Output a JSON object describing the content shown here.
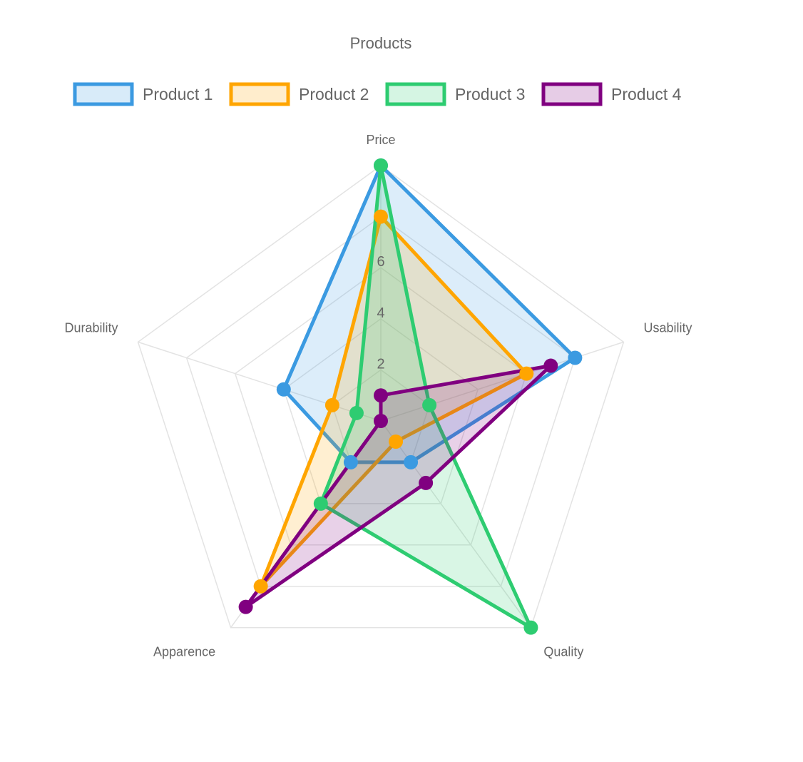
{
  "chart_data": {
    "type": "radar",
    "title": "Products",
    "axes": [
      "Price",
      "Usability",
      "Quality",
      "Apparence",
      "Durability"
    ],
    "range": [
      0,
      10
    ],
    "ticks": [
      "2",
      "4",
      "6"
    ],
    "tick_values": [
      2,
      4,
      6
    ],
    "grid": true,
    "legend_position": "top",
    "series": [
      {
        "name": "Product 1",
        "color": "#3B9AE1",
        "values": [
          10,
          8,
          2,
          2,
          4
        ]
      },
      {
        "name": "Product 2",
        "color": "#FFA500",
        "values": [
          8,
          6,
          1,
          8,
          2
        ]
      },
      {
        "name": "Product 3",
        "color": "#2ECC71",
        "values": [
          10,
          2,
          10,
          4,
          1
        ]
      },
      {
        "name": "Product 4",
        "color": "#800080",
        "values": [
          1,
          7,
          3,
          9,
          0
        ]
      }
    ]
  }
}
